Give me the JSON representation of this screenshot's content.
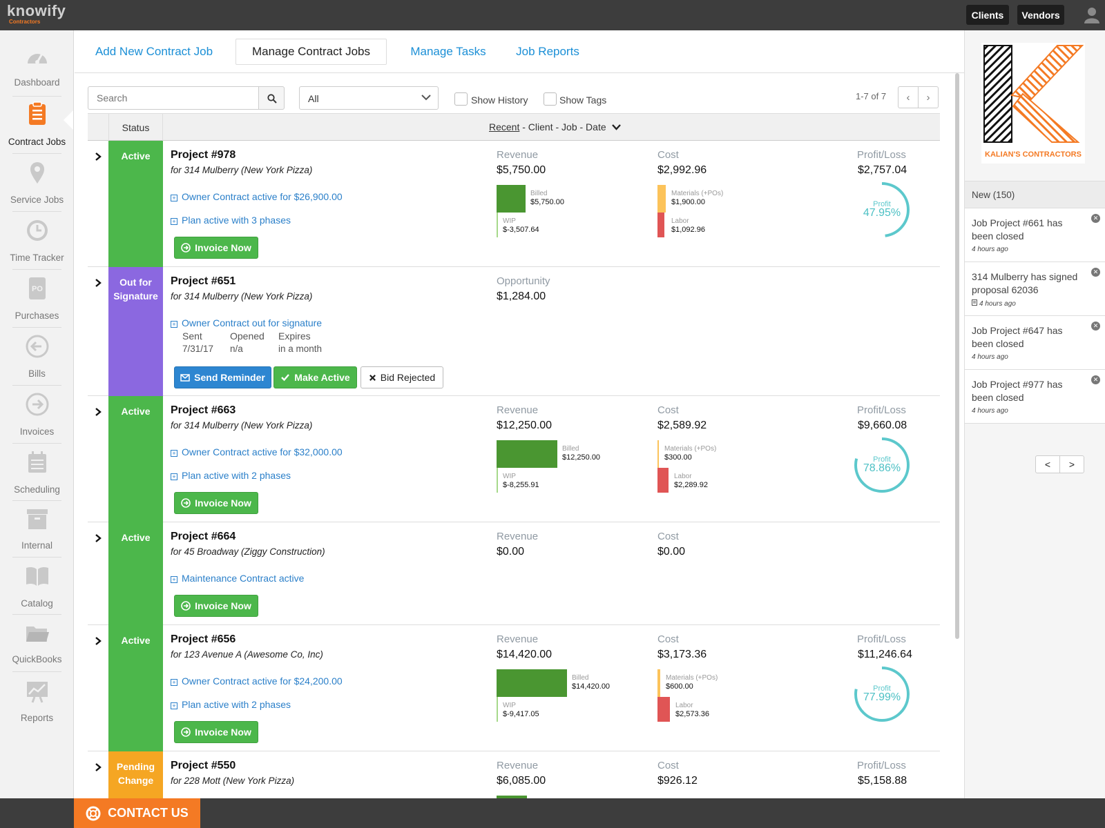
{
  "app": {
    "logo_text": "knowify",
    "logo_sub": "Contractors"
  },
  "topbar": {
    "clients_label": "Clients",
    "vendors_label": "Vendors"
  },
  "sidebar": {
    "items": [
      {
        "label": "Dashboard",
        "icon": "dashboard-icon"
      },
      {
        "label": "Contract Jobs",
        "icon": "contract-jobs-icon",
        "active": true
      },
      {
        "label": "Service Jobs",
        "icon": "map-pin-icon"
      },
      {
        "label": "Time Tracker",
        "icon": "clock-icon"
      },
      {
        "label": "Purchases",
        "icon": "po-icon",
        "icon_text": "PO"
      },
      {
        "label": "Bills",
        "icon": "arrow-left-circle-icon"
      },
      {
        "label": "Invoices",
        "icon": "arrow-right-circle-icon"
      },
      {
        "label": "Scheduling",
        "icon": "calendar-icon"
      },
      {
        "label": "Internal",
        "icon": "archive-box-icon"
      },
      {
        "label": "Catalog",
        "icon": "book-icon"
      },
      {
        "label": "QuickBooks",
        "icon": "folder-icon"
      },
      {
        "label": "Reports",
        "icon": "chart-icon"
      }
    ]
  },
  "tabs": [
    {
      "label": "Add New Contract Job"
    },
    {
      "label": "Manage Contract Jobs",
      "active": true
    },
    {
      "label": "Manage Tasks"
    },
    {
      "label": "Job Reports"
    }
  ],
  "toolbar": {
    "search_placeholder": "Search",
    "filter_value": "All",
    "show_history_label": "Show History",
    "show_tags_label": "Show Tags",
    "pager_text": "1-7 of 7",
    "prev": "‹",
    "next": "›"
  },
  "table": {
    "status_header": "Status",
    "sort_active": "Recent",
    "sort_rest": " - Client - Job - Date"
  },
  "labels": {
    "revenue": "Revenue",
    "cost": "Cost",
    "profit_loss": "Profit/Loss",
    "opportunity": "Opportunity",
    "billed": "Billed",
    "wip": "WIP",
    "materials": "Materials (+POs)",
    "labor": "Labor",
    "profit": "Profit",
    "invoice_now": "Invoice Now",
    "send_reminder": "Send Reminder",
    "make_active": "Make Active",
    "bid_rejected": "Bid Rejected",
    "sent": "Sent",
    "opened": "Opened",
    "expires": "Expires"
  },
  "jobs": [
    {
      "status": "Active",
      "title": "Project #978",
      "client": "for 314 Mulberry (New York Pizza)",
      "links": [
        "Owner Contract active for $26,900.00",
        "Plan active with 3 phases"
      ],
      "revenue": "$5,750.00",
      "cost": "$2,992.96",
      "profit_loss": "$2,757.04",
      "billed": "$5,750.00",
      "wip": "$-3,507.64",
      "materials": "$1,900.00",
      "labor": "$1,092.96",
      "profit_pct": "47.95%",
      "profit_frac": 0.4795
    },
    {
      "status": "Out for Signature",
      "title": "Project #651",
      "client": "for 314 Mulberry (New York Pizza)",
      "links": [
        "Owner Contract out for signature"
      ],
      "opportunity": "$1,284.00",
      "sent": "7/31/17",
      "opened": "n/a",
      "expires": "in a month"
    },
    {
      "status": "Active",
      "title": "Project #663",
      "client": "for 314 Mulberry (New York Pizza)",
      "links": [
        "Owner Contract active for $32,000.00",
        "Plan active with 2 phases"
      ],
      "revenue": "$12,250.00",
      "cost": "$2,589.92",
      "profit_loss": "$9,660.08",
      "billed": "$12,250.00",
      "wip": "$-8,255.91",
      "materials": "$300.00",
      "labor": "$2,289.92",
      "profit_pct": "78.86%",
      "profit_frac": 0.7886
    },
    {
      "status": "Active",
      "title": "Project #664",
      "client": "for 45 Broadway (Ziggy Construction)",
      "links": [
        "Maintenance Contract active"
      ],
      "revenue": "$0.00",
      "cost": "$0.00"
    },
    {
      "status": "Active",
      "title": "Project #656",
      "client": "for 123 Avenue A (Awesome Co, Inc)",
      "links": [
        "Owner Contract active for $24,200.00",
        "Plan active with 2 phases"
      ],
      "revenue": "$14,420.00",
      "cost": "$3,173.36",
      "profit_loss": "$11,246.64",
      "billed": "$14,420.00",
      "wip": "$-9,417.05",
      "materials": "$600.00",
      "labor": "$2,573.36",
      "profit_pct": "77.99%",
      "profit_frac": 0.7799
    },
    {
      "status": "Pending Change",
      "title": "Project #550",
      "client": "for 228 Mott (New York Pizza)",
      "revenue": "$6,085.00",
      "cost": "$926.12",
      "profit_loss": "$5,158.88"
    }
  ],
  "colors": {
    "active": "#4cb74b",
    "signature": "#8b68e0",
    "pending": "#f5a623",
    "accent": "#1b8fd6",
    "brand_orange": "#f47a24"
  },
  "right_panel": {
    "logo_text": "KALIAN'S CONTRACTORS",
    "notif_header": "New (150)",
    "notifications": [
      {
        "text": "Job Project #661 has been closed",
        "time": "4 hours ago"
      },
      {
        "text": "314 Mulberry has signed proposal 62036",
        "time": "4 hours ago"
      },
      {
        "text": "Job Project #647 has been closed",
        "time": "4 hours ago"
      },
      {
        "text": "Job Project #977 has been closed",
        "time": "4 hours ago"
      }
    ],
    "prev": "<",
    "next": ">"
  },
  "footer": {
    "contact_label": "CONTACT US"
  }
}
